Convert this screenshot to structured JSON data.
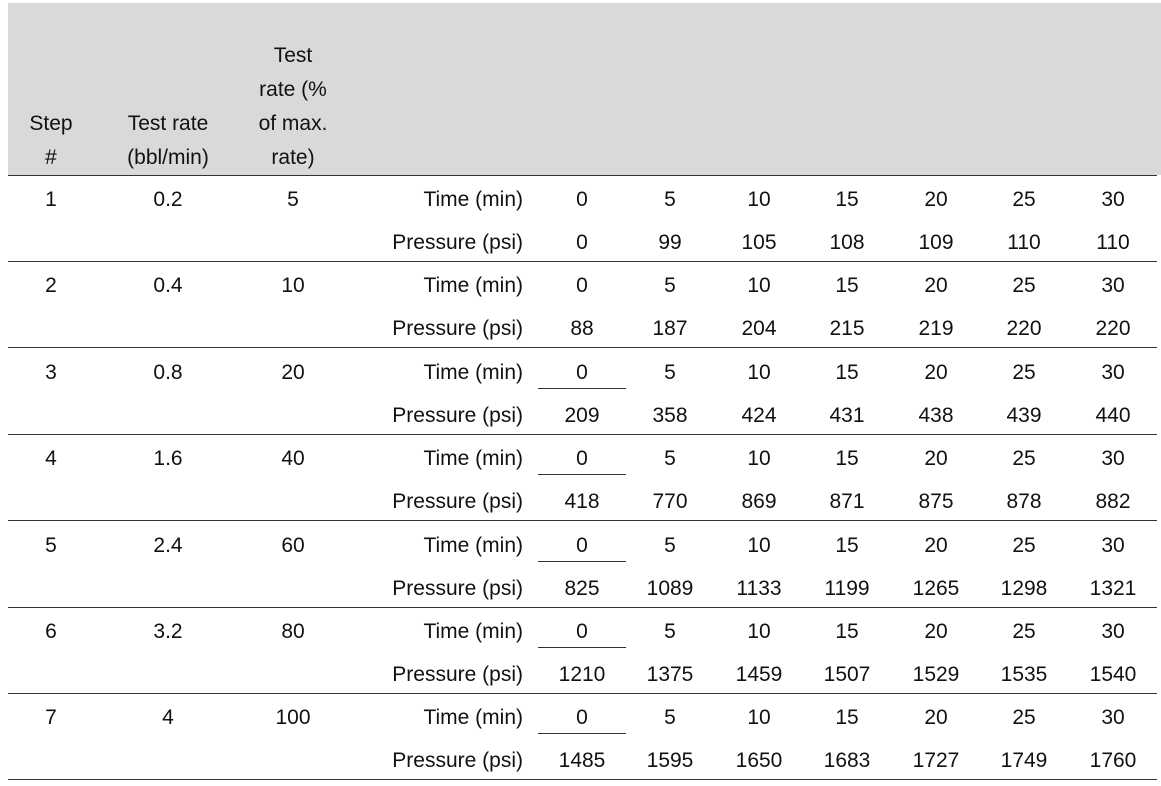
{
  "table": {
    "header": [
      "Step #",
      "Test rate (bbl/min)",
      "Test rate (% of max. rate)"
    ],
    "rows": [
      {
        "step": "1",
        "rate": "0.2",
        "percent": "5",
        "time_label": "Time (min)",
        "times": [
          "0",
          "5",
          "10",
          "15",
          "20",
          "25",
          "30"
        ],
        "pressure_label": "Pressure (psi)",
        "pressures": [
          "0",
          "99",
          "105",
          "108",
          "109",
          "110",
          "110"
        ]
      },
      {
        "step": "2",
        "rate": "0.4",
        "percent": "10",
        "time_label": "Time (min)",
        "times": [
          "0",
          "5",
          "10",
          "15",
          "20",
          "25",
          "30"
        ],
        "pressure_label": "Pressure (psi)",
        "pressures": [
          "88",
          "187",
          "204",
          "215",
          "219",
          "220",
          "220"
        ]
      },
      {
        "step": "3",
        "rate": "0.8",
        "percent": "20",
        "time_label": "Time (min)",
        "times": [
          "0",
          "5",
          "10",
          "15",
          "20",
          "25",
          "30"
        ],
        "pressure_label": "Pressure (psi)",
        "pressures": [
          "209",
          "358",
          "424",
          "431",
          "438",
          "439",
          "440"
        ]
      },
      {
        "step": "4",
        "rate": "1.6",
        "percent": "40",
        "time_label": "Time (min)",
        "times": [
          "0",
          "5",
          "10",
          "15",
          "20",
          "25",
          "30"
        ],
        "pressure_label": "Pressure (psi)",
        "pressures": [
          "418",
          "770",
          "869",
          "871",
          "875",
          "878",
          "882"
        ]
      },
      {
        "step": "5",
        "rate": "2.4",
        "percent": "60",
        "time_label": "Time (min)",
        "times": [
          "0",
          "5",
          "10",
          "15",
          "20",
          "25",
          "30"
        ],
        "pressure_label": "Pressure (psi)",
        "pressures": [
          "825",
          "1089",
          "1133",
          "1199",
          "1265",
          "1298",
          "1321"
        ]
      },
      {
        "step": "6",
        "rate": "3.2",
        "percent": "80",
        "time_label": "Time (min)",
        "times": [
          "0",
          "5",
          "10",
          "15",
          "20",
          "25",
          "30"
        ],
        "pressure_label": "Pressure (psi)",
        "pressures": [
          "1210",
          "1375",
          "1459",
          "1507",
          "1529",
          "1535",
          "1540"
        ]
      },
      {
        "step": "7",
        "rate": "4",
        "percent": "100",
        "time_label": "Time (min)",
        "times": [
          "0",
          "5",
          "10",
          "15",
          "20",
          "25",
          "30"
        ],
        "pressure_label": "Pressure (psi)",
        "pressures": [
          "1485",
          "1595",
          "1650",
          "1683",
          "1727",
          "1749",
          "1760"
        ]
      }
    ]
  }
}
